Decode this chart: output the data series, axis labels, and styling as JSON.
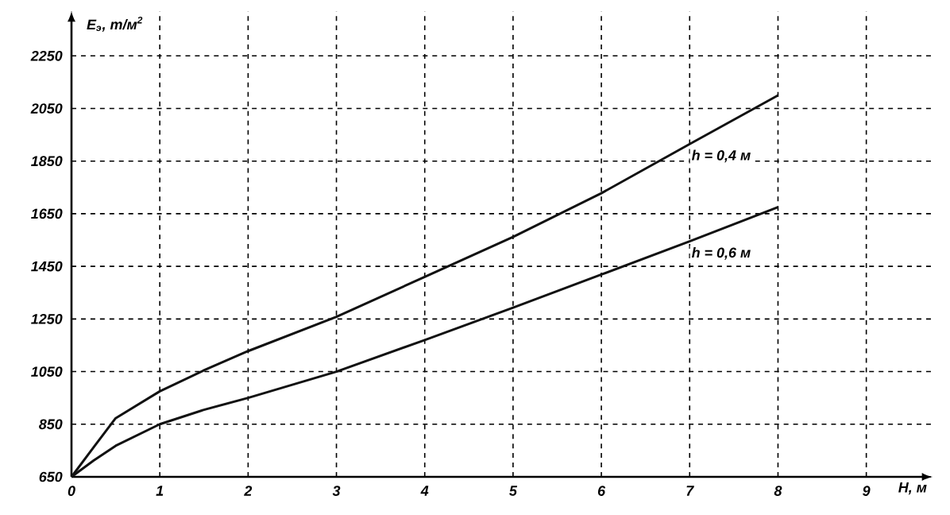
{
  "chart_data": {
    "type": "line",
    "xlabel": "H, м",
    "ylabel": "E$_{э}$, т/м$^{2}$",
    "xlim": [
      0,
      9.75
    ],
    "ylim": [
      650,
      2420
    ],
    "xticks": [
      0,
      1,
      2,
      3,
      4,
      5,
      6,
      7,
      8,
      9
    ],
    "yticks": [
      650,
      850,
      1050,
      1250,
      1450,
      1650,
      1850,
      2050,
      2250
    ],
    "grid": true,
    "line_style": "solid",
    "marker": "none",
    "x": [
      0,
      0.25,
      0.5,
      1,
      1.5,
      2,
      3,
      4,
      5,
      6,
      7,
      8
    ],
    "series": [
      {
        "color": "#111111",
        "values": [
          650,
          762,
          873,
          975,
          1055,
          1128,
          1258,
          1410,
          1562,
          1728,
          1915,
          2100
        ]
      },
      {
        "color": "#111111",
        "values": [
          650,
          712,
          768,
          850,
          905,
          950,
          1050,
          1170,
          1293,
          1419,
          1545,
          1675
        ]
      }
    ],
    "annotations": [
      {
        "text": "h = 0,4 м",
        "x": 7,
        "y": 1900
      },
      {
        "text": "h = 0,6 м",
        "x": 7,
        "y": 1530
      }
    ]
  }
}
